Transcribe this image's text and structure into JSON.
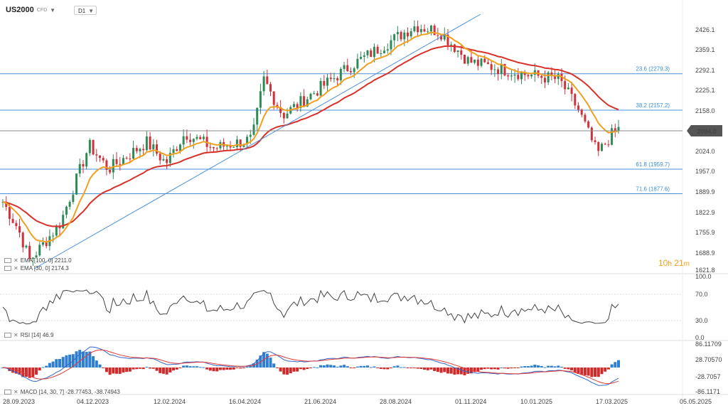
{
  "header": {
    "symbol": "US2000",
    "symbol_type": "CFD",
    "timeframe": "D1"
  },
  "price_axis": {
    "ticks": [
      "2426.1",
      "2359.1",
      "2292.1",
      "2225.1",
      "2158.0",
      "2094.0",
      "2024.0",
      "1957.0",
      "1889.9",
      "1822.9",
      "1755.9",
      "1688.9",
      "1621.8"
    ],
    "current_price": "2094.0"
  },
  "fib_levels": [
    {
      "label": "23.6 (2279.3)",
      "value": 2279.3
    },
    {
      "label": "38.2 (2157.2)",
      "value": 2157.2
    },
    {
      "label": "61.8 (1959.7)",
      "value": 1959.7
    },
    {
      "label": "71.6 (1877.6)",
      "value": 1877.6
    }
  ],
  "indicators": {
    "ema1": {
      "text": "EMA [100, 0] 2211.0"
    },
    "ema2": {
      "text": "EMA [30, 0] 2174.3"
    },
    "rsi": {
      "text": "RSI [14] 46.9",
      "ticks": [
        "100.0",
        "70.0",
        "30.0",
        "0.0"
      ]
    },
    "macd": {
      "text": "MACD [14, 30, 7] -28.77453, -38.74943",
      "ticks": [
        "86.11709",
        "28.70570",
        "-28.7057",
        "-86.1171"
      ]
    }
  },
  "timer": {
    "hours": "10",
    "h": "h",
    "minutes": "21",
    "m": "m"
  },
  "date_axis": [
    "28.09.2023",
    "04.12.2023",
    "12.02.2024",
    "16.04.2024",
    "21.06.2024",
    "28.08.2024",
    "01.11.2024",
    "10.01.2025",
    "17.03.2025",
    "05.05.2025"
  ],
  "colors": {
    "up": "#2e8b57",
    "down": "#d0323c",
    "ema_slow": "#d8312a",
    "ema_fast": "#f0a020",
    "fib": "#4a90d9",
    "rsi": "#444444",
    "macd_line": "#3366cc",
    "signal_line": "#e03a3a",
    "hist_up": "#2f7fd0",
    "hist_down": "#d02a2a"
  }
}
